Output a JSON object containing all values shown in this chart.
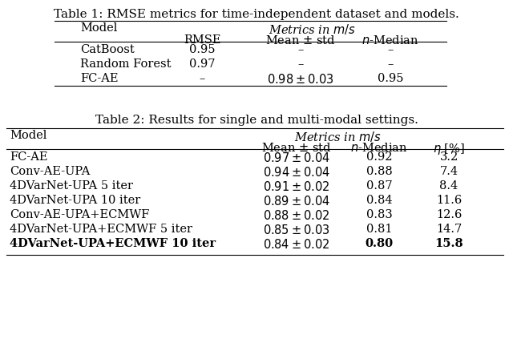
{
  "table1_title": "Table 1: RMSE metrics for time-independent dataset and models.",
  "table2_title": "Table 2: Results for single and multi-modal settings.",
  "table1_rows": [
    [
      "CatBoost",
      "0.95",
      "–",
      "–"
    ],
    [
      "Random Forest",
      "0.97",
      "–",
      "–"
    ],
    [
      "FC-AE",
      "–",
      "$0.98 \\pm 0.03$",
      "0.95"
    ]
  ],
  "table2_rows": [
    [
      "FC-AE",
      "$0.97 \\pm 0.04$",
      "0.92",
      "3.2",
      false
    ],
    [
      "Conv-AE-UPA",
      "$0.94 \\pm 0.04$",
      "0.88",
      "7.4",
      false
    ],
    [
      "4DVarNet-UPA 5 iter",
      "$0.91 \\pm 0.02$",
      "0.87",
      "8.4",
      false
    ],
    [
      "4DVarNet-UPA 10 iter",
      "$0.89 \\pm 0.04$",
      "0.84",
      "11.6",
      false
    ],
    [
      "Conv-AE-UPA+ECMWF",
      "$0.88 \\pm 0.02$",
      "0.83",
      "12.6",
      false
    ],
    [
      "4DVarNet-UPA+ECMWF 5 iter",
      "$0.85 \\pm 0.03$",
      "0.81",
      "14.7",
      false
    ],
    [
      "4DVarNet-UPA+ECMWF 10 iter",
      "$0.84 \\pm 0.02$",
      "0.80",
      "15.8",
      true
    ]
  ],
  "bg_color": "#ffffff",
  "text_color": "#000000"
}
